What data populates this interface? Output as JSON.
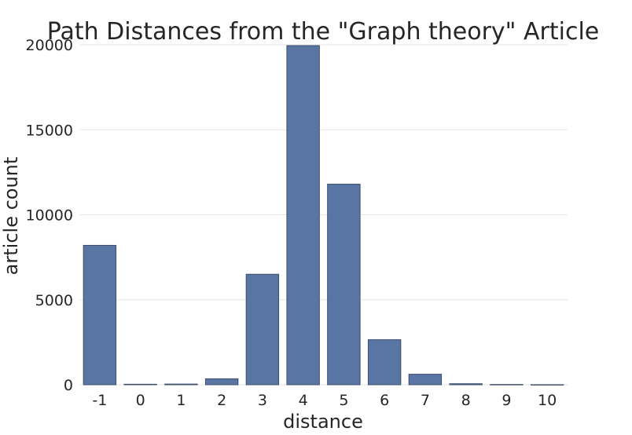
{
  "chart_data": {
    "type": "bar",
    "title": "Path Distances from the \"Graph theory\" Article",
    "xlabel": "distance",
    "ylabel": "article count",
    "categories": [
      "-1",
      "0",
      "1",
      "2",
      "3",
      "4",
      "5",
      "6",
      "7",
      "8",
      "9",
      "10"
    ],
    "values": [
      8200,
      30,
      40,
      350,
      6500,
      19950,
      11800,
      2650,
      620,
      60,
      15,
      5
    ],
    "yticks": [
      0,
      5000,
      10000,
      15000,
      20000
    ],
    "ylim": [
      0,
      20000
    ],
    "grid": true,
    "bar_color": "#5975a4"
  }
}
